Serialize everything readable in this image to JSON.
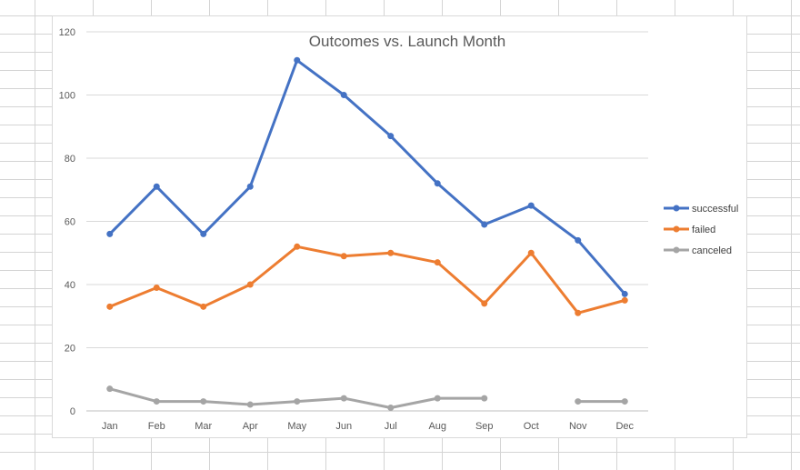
{
  "chart_data": {
    "type": "line",
    "title": "Outcomes vs. Launch Month",
    "categories": [
      "Jan",
      "Feb",
      "Mar",
      "Apr",
      "May",
      "Jun",
      "Jul",
      "Aug",
      "Sep",
      "Oct",
      "Nov",
      "Dec"
    ],
    "ylim": [
      0,
      120
    ],
    "yticks": [
      0,
      20,
      40,
      60,
      80,
      100,
      120
    ],
    "grid": true,
    "legend_position": "right",
    "series": [
      {
        "name": "successful",
        "color": "#4472c4",
        "values": [
          56,
          71,
          56,
          71,
          111,
          100,
          87,
          72,
          59,
          65,
          54,
          37
        ]
      },
      {
        "name": "failed",
        "color": "#ed7d31",
        "values": [
          33,
          39,
          33,
          40,
          52,
          49,
          50,
          47,
          34,
          50,
          31,
          35
        ]
      },
      {
        "name": "canceled",
        "color": "#a5a5a5",
        "values": [
          7,
          3,
          3,
          2,
          3,
          4,
          1,
          4,
          4,
          null,
          3,
          3
        ]
      }
    ]
  }
}
